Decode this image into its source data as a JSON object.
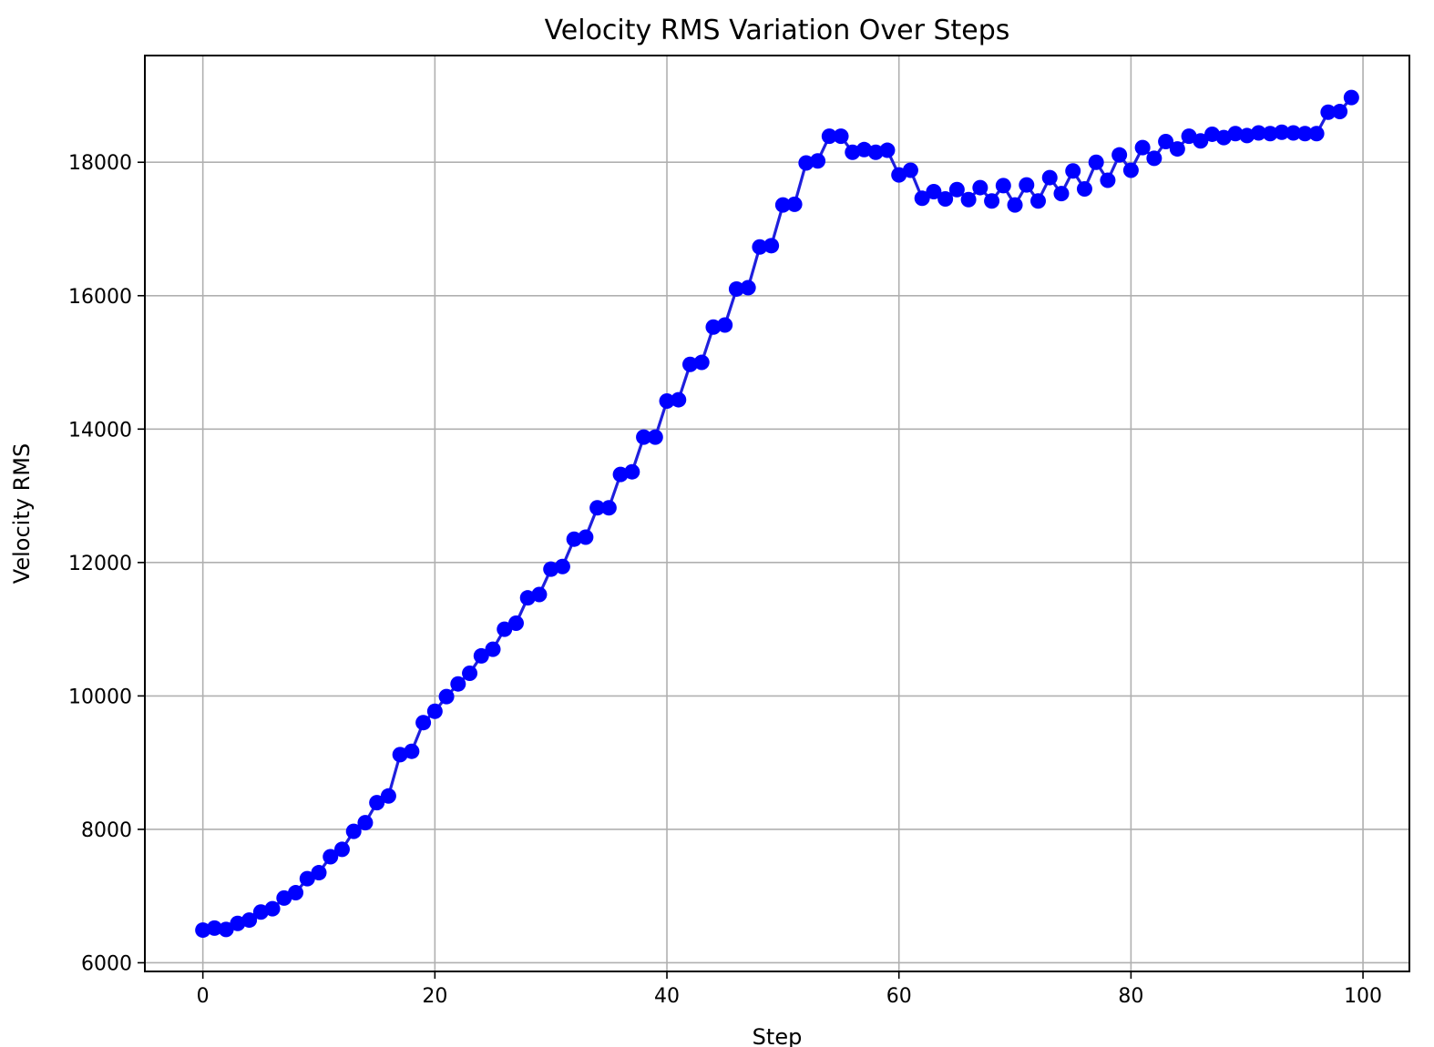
{
  "chart_data": {
    "type": "line",
    "title": "Velocity RMS Variation Over Steps",
    "xlabel": "Step",
    "ylabel": "Velocity RMS",
    "xlim": [
      -5,
      104
    ],
    "ylim": [
      5870,
      19600
    ],
    "xticks": [
      0,
      20,
      40,
      60,
      80,
      100
    ],
    "yticks": [
      6000,
      8000,
      10000,
      12000,
      14000,
      16000,
      18000
    ],
    "grid": true,
    "series": [
      {
        "color": "#0000ff",
        "line_color": "#1f1fdd",
        "marker": "circle",
        "x": [
          0,
          1,
          2,
          3,
          4,
          5,
          6,
          7,
          8,
          9,
          10,
          11,
          12,
          13,
          14,
          15,
          16,
          17,
          18,
          19,
          20,
          21,
          22,
          23,
          24,
          25,
          26,
          27,
          28,
          29,
          30,
          31,
          32,
          33,
          34,
          35,
          36,
          37,
          38,
          39,
          40,
          41,
          42,
          43,
          44,
          45,
          46,
          47,
          48,
          49,
          50,
          51,
          52,
          53,
          54,
          55,
          56,
          57,
          58,
          59,
          60,
          61,
          62,
          63,
          64,
          65,
          66,
          67,
          68,
          69,
          70,
          71,
          72,
          73,
          74,
          75,
          76,
          77,
          78,
          79,
          80,
          81,
          82,
          83,
          84,
          85,
          86,
          87,
          88,
          89,
          90,
          91,
          92,
          93,
          94,
          95,
          96,
          97,
          98,
          99
        ],
        "y": [
          6490,
          6520,
          6500,
          6590,
          6640,
          6760,
          6810,
          6970,
          7050,
          7260,
          7350,
          7590,
          7700,
          7970,
          8100,
          8400,
          8500,
          9120,
          9170,
          9600,
          9770,
          9990,
          10180,
          10340,
          10600,
          10700,
          11000,
          11090,
          11470,
          11520,
          11900,
          11940,
          12350,
          12380,
          12820,
          12820,
          13320,
          13360,
          13880,
          13880,
          14420,
          14440,
          14970,
          15000,
          15530,
          15560,
          16100,
          16120,
          16730,
          16750,
          17360,
          17370,
          17990,
          18020,
          18390,
          18390,
          18150,
          18190,
          18150,
          18180,
          17810,
          17880,
          17460,
          17560,
          17450,
          17590,
          17440,
          17620,
          17420,
          17650,
          17360,
          17660,
          17420,
          17770,
          17530,
          17870,
          17600,
          18000,
          17730,
          18110,
          17880,
          18220,
          18060,
          18310,
          18200,
          18390,
          18320,
          18420,
          18370,
          18430,
          18400,
          18440,
          18430,
          18450,
          18440,
          18430,
          18430,
          18750,
          18760,
          18970
        ]
      }
    ]
  }
}
